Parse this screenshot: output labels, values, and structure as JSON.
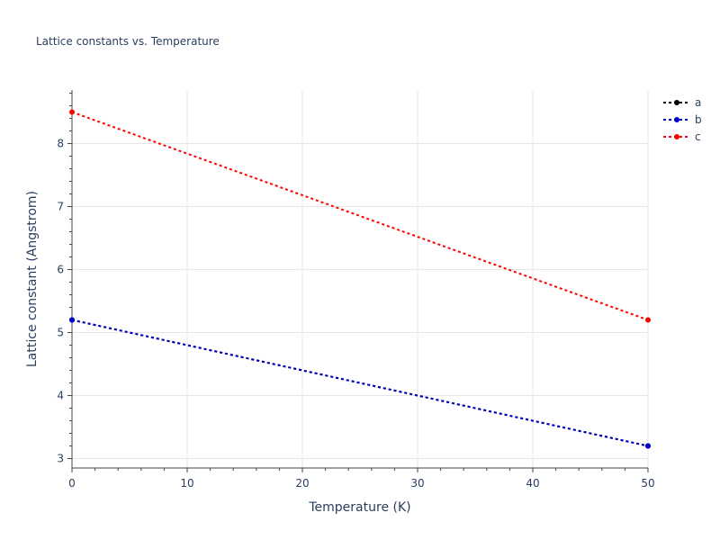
{
  "chart_data": {
    "type": "line",
    "title": "Lattice constants vs. Temperature",
    "xlabel": "Temperature (K)",
    "ylabel": "Lattice constant (Angstrom)",
    "xlim": [
      0,
      50
    ],
    "ylim": [
      2.85,
      8.85
    ],
    "xticks": [
      0,
      10,
      20,
      30,
      40,
      50
    ],
    "yticks": [
      3,
      4,
      5,
      6,
      7,
      8
    ],
    "grid": true,
    "legend_position": "top-right",
    "series": [
      {
        "name": "a",
        "color": "#000000",
        "x": [
          0,
          50
        ],
        "values": [
          5.2,
          3.2
        ]
      },
      {
        "name": "b",
        "color": "#0000cc",
        "x": [
          0,
          50
        ],
        "values": [
          5.2,
          3.2
        ]
      },
      {
        "name": "c",
        "color": "#ff0000",
        "x": [
          0,
          50
        ],
        "values": [
          8.5,
          5.2
        ]
      }
    ]
  }
}
